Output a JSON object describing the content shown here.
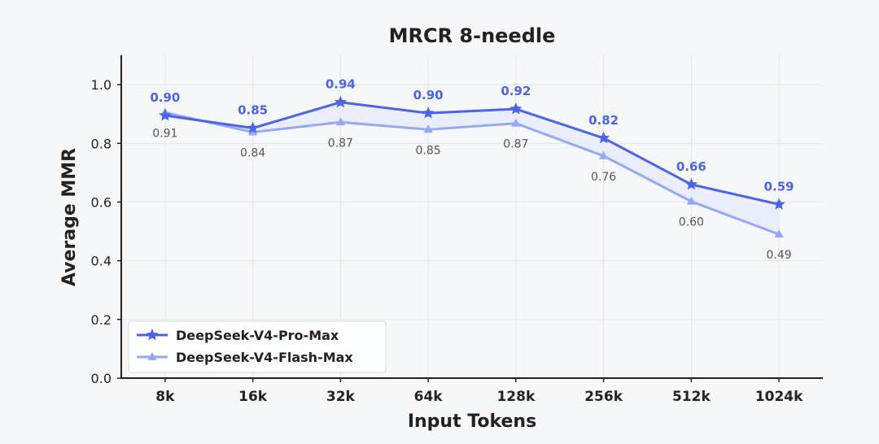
{
  "chart_data": {
    "type": "line",
    "title": "MRCR 8-needle",
    "xlabel": "Input Tokens",
    "ylabel": "Average MMR",
    "categories": [
      "8k",
      "16k",
      "32k",
      "64k",
      "128k",
      "256k",
      "512k",
      "1024k"
    ],
    "ylim": [
      0.0,
      1.1
    ],
    "yticks": [
      "0.0",
      "0.2",
      "0.4",
      "0.6",
      "0.8",
      "1.0"
    ],
    "grid": true,
    "legend_position": "bottom-left",
    "series": [
      {
        "name": "DeepSeek-V4-Pro-Max",
        "marker": "star",
        "color": "#4c63e6",
        "values": [
          0.895,
          0.852,
          0.94,
          0.903,
          0.917,
          0.818,
          0.66,
          0.592
        ],
        "labels": [
          "0.90",
          "0.85",
          "0.94",
          "0.90",
          "0.92",
          "0.82",
          "0.66",
          "0.59"
        ]
      },
      {
        "name": "DeepSeek-V4-Flash-Max",
        "marker": "triangle",
        "color": "#96a8f5",
        "values": [
          0.905,
          0.838,
          0.872,
          0.847,
          0.868,
          0.757,
          0.602,
          0.49
        ],
        "labels": [
          "0.91",
          "0.84",
          "0.87",
          "0.85",
          "0.87",
          "0.76",
          "0.60",
          "0.49"
        ]
      }
    ],
    "fill_between": "#e7ebfb"
  }
}
